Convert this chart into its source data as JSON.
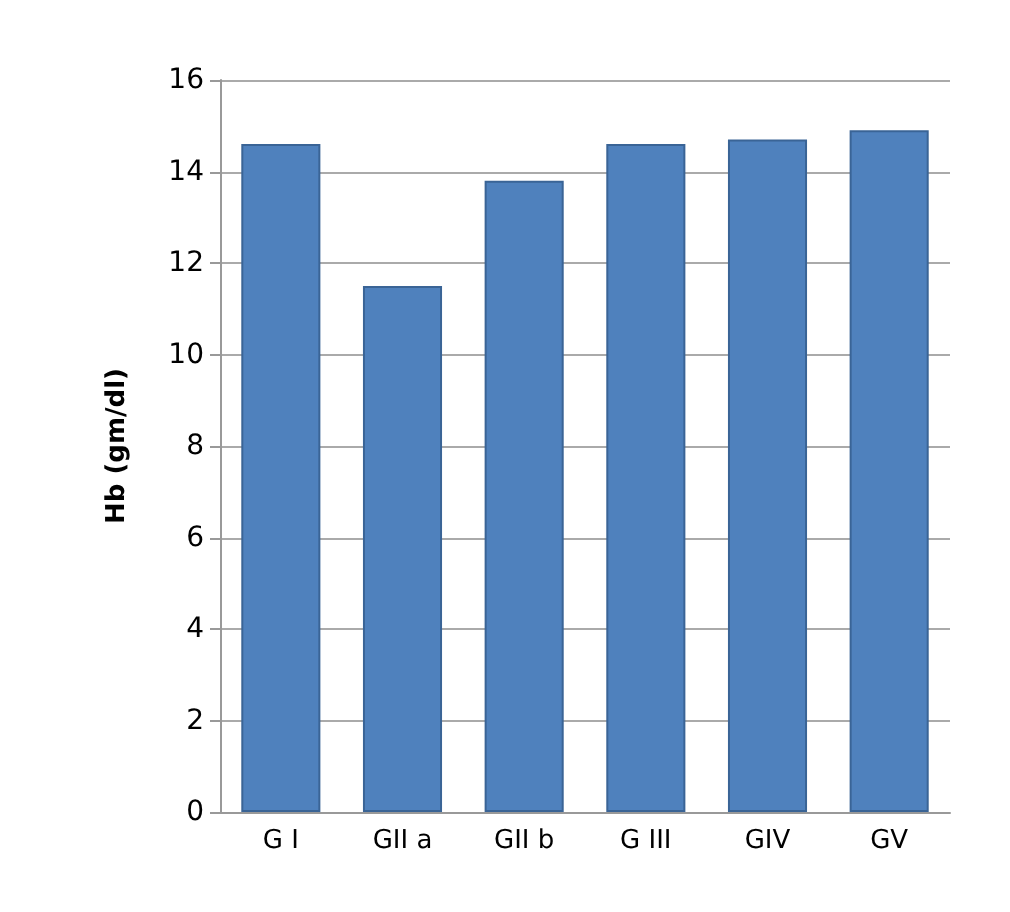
{
  "chart_data": {
    "type": "bar",
    "ylabel": "Hb (gm/dl)",
    "categories": [
      "G I",
      "GII a",
      "GII b",
      "G III",
      "GIV",
      "GV"
    ],
    "values": [
      14.6,
      11.5,
      13.8,
      14.6,
      14.7,
      14.9
    ],
    "color": "#4f81bd",
    "ylim": [
      0,
      16
    ],
    "yticks": [
      0,
      2,
      4,
      6,
      8,
      10,
      12,
      14,
      16
    ],
    "grid": "y"
  }
}
